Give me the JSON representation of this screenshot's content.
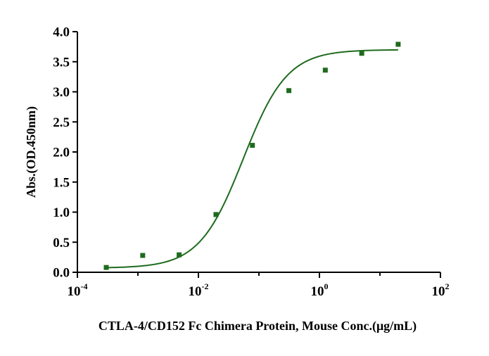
{
  "chart_data": {
    "type": "scatter",
    "title": "",
    "xlabel": "CTLA-4/CD152 Fc Chimera Protein, Mouse Conc.(μg/mL)",
    "ylabel": "Abs.(OD.450nm)",
    "x_scale": "log",
    "xlim": [
      0.0001,
      100
    ],
    "ylim": [
      0,
      4
    ],
    "x_ticks": [
      {
        "value": 0.0001,
        "base": "10",
        "exp": "-4"
      },
      {
        "value": 0.01,
        "base": "10",
        "exp": "-2"
      },
      {
        "value": 1,
        "base": "10",
        "exp": "0"
      },
      {
        "value": 100,
        "base": "10",
        "exp": "2"
      }
    ],
    "y_ticks": [
      {
        "value": 0.0,
        "label": "0.0"
      },
      {
        "value": 0.5,
        "label": "0.5"
      },
      {
        "value": 1.0,
        "label": "1.0"
      },
      {
        "value": 1.5,
        "label": "1.5"
      },
      {
        "value": 2.0,
        "label": "2.0"
      },
      {
        "value": 2.5,
        "label": "2.5"
      },
      {
        "value": 3.0,
        "label": "3.0"
      },
      {
        "value": 3.5,
        "label": "3.5"
      },
      {
        "value": 4.0,
        "label": "4.0"
      }
    ],
    "grid": false,
    "legend": "none",
    "series": [
      {
        "x": [
          0.0003,
          0.0012,
          0.0048,
          0.0195,
          0.078,
          0.3125,
          1.25,
          5,
          20
        ],
        "y": [
          0.08,
          0.28,
          0.29,
          0.96,
          2.11,
          3.02,
          3.36,
          3.64,
          3.79
        ],
        "color": "#1e6b1e",
        "marker": "square",
        "fit": {
          "model": "4PL",
          "bottom": 0.07,
          "top": 3.7,
          "ec50": 0.055,
          "hill": 1.2,
          "x_range": [
            0.0003,
            20
          ]
        }
      }
    ]
  }
}
